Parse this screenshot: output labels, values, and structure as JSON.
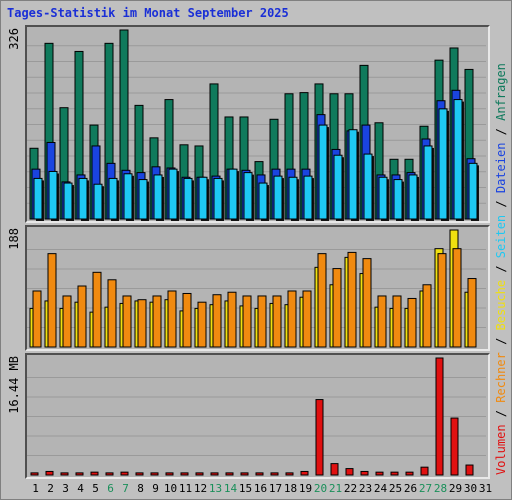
{
  "title": "Tages-Statistik im Monat September 2025",
  "legend": {
    "volumen": "Volumen",
    "rechner": "Rechner",
    "besuche": "Besuche",
    "seiten": "Seiten",
    "dateien": "Dateien",
    "anfragen": "Anfragen",
    "separator": " / "
  },
  "colors": {
    "anfragen": "#0f7a5c",
    "dateien": "#1a44e0",
    "seiten": "#1ec8f2",
    "besuche": "#f0e010",
    "rechner": "#f08a10",
    "volumen": "#e01010",
    "weekend_label": "#1a8f5a"
  },
  "chart_data": [
    {
      "type": "bar",
      "scale_label": "326",
      "ylim": [
        0,
        326
      ],
      "categories": [
        "1",
        "2",
        "3",
        "4",
        "5",
        "6",
        "7",
        "8",
        "9",
        "10",
        "11",
        "12",
        "13",
        "14",
        "15",
        "16",
        "17",
        "18",
        "19",
        "20",
        "21",
        "22",
        "23",
        "24",
        "25",
        "26",
        "27",
        "28",
        "29",
        "30",
        "31"
      ],
      "weekend_days": [
        "6",
        "7",
        "13",
        "14",
        "20",
        "21",
        "27",
        "28"
      ],
      "series": [
        {
          "name": "Anfragen",
          "values": [
            122,
            303,
            192,
            289,
            162,
            303,
            326,
            196,
            140,
            206,
            128,
            126,
            233,
            176,
            176,
            99,
            172,
            216,
            218,
            233,
            216,
            216,
            265,
            166,
            103,
            103,
            160,
            274,
            295,
            258,
            0
          ]
        },
        {
          "name": "Dateien",
          "values": [
            86,
            132,
            64,
            76,
            126,
            96,
            84,
            80,
            90,
            88,
            72,
            72,
            74,
            86,
            84,
            76,
            86,
            86,
            86,
            180,
            120,
            152,
            162,
            76,
            76,
            80,
            138,
            204,
            222,
            104,
            0
          ]
        },
        {
          "name": "Seiten",
          "values": [
            70,
            82,
            62,
            70,
            60,
            70,
            78,
            68,
            76,
            86,
            70,
            72,
            70,
            86,
            80,
            62,
            74,
            72,
            74,
            162,
            110,
            154,
            112,
            72,
            68,
            76,
            126,
            190,
            206,
            96,
            0
          ]
        }
      ]
    },
    {
      "type": "bar",
      "scale_label": "188",
      "ylim": [
        0,
        188
      ],
      "categories": [
        "1",
        "2",
        "3",
        "4",
        "5",
        "6",
        "7",
        "8",
        "9",
        "10",
        "11",
        "12",
        "13",
        "14",
        "15",
        "16",
        "17",
        "18",
        "19",
        "20",
        "21",
        "22",
        "23",
        "24",
        "25",
        "26",
        "27",
        "28",
        "29",
        "30",
        "31"
      ],
      "series": [
        {
          "name": "Besuche",
          "values": [
            62,
            74,
            62,
            72,
            56,
            64,
            70,
            74,
            72,
            76,
            58,
            62,
            68,
            74,
            66,
            62,
            70,
            68,
            80,
            128,
            100,
            144,
            118,
            64,
            62,
            62,
            90,
            158,
            188,
            88,
            0
          ]
        },
        {
          "name": "Rechner",
          "values": [
            90,
            150,
            82,
            98,
            120,
            108,
            82,
            76,
            82,
            90,
            86,
            72,
            84,
            88,
            82,
            82,
            82,
            90,
            90,
            150,
            126,
            152,
            142,
            82,
            82,
            78,
            100,
            150,
            158,
            110,
            0
          ]
        }
      ]
    },
    {
      "type": "bar",
      "scale_label": "16.44 MB",
      "ylim": [
        0,
        16.44
      ],
      "categories": [
        "1",
        "2",
        "3",
        "4",
        "5",
        "6",
        "7",
        "8",
        "9",
        "10",
        "11",
        "12",
        "13",
        "14",
        "15",
        "16",
        "17",
        "18",
        "19",
        "20",
        "21",
        "22",
        "23",
        "24",
        "25",
        "26",
        "27",
        "28",
        "29",
        "30",
        "31"
      ],
      "series": [
        {
          "name": "Volumen",
          "values": [
            0.3,
            0.5,
            0.3,
            0.3,
            0.4,
            0.3,
            0.4,
            0.3,
            0.3,
            0.3,
            0.3,
            0.3,
            0.3,
            0.3,
            0.3,
            0.3,
            0.3,
            0.3,
            0.5,
            10.6,
            1.6,
            0.9,
            0.5,
            0.4,
            0.4,
            0.4,
            1.1,
            16.44,
            8.0,
            1.4,
            0
          ]
        }
      ]
    }
  ]
}
